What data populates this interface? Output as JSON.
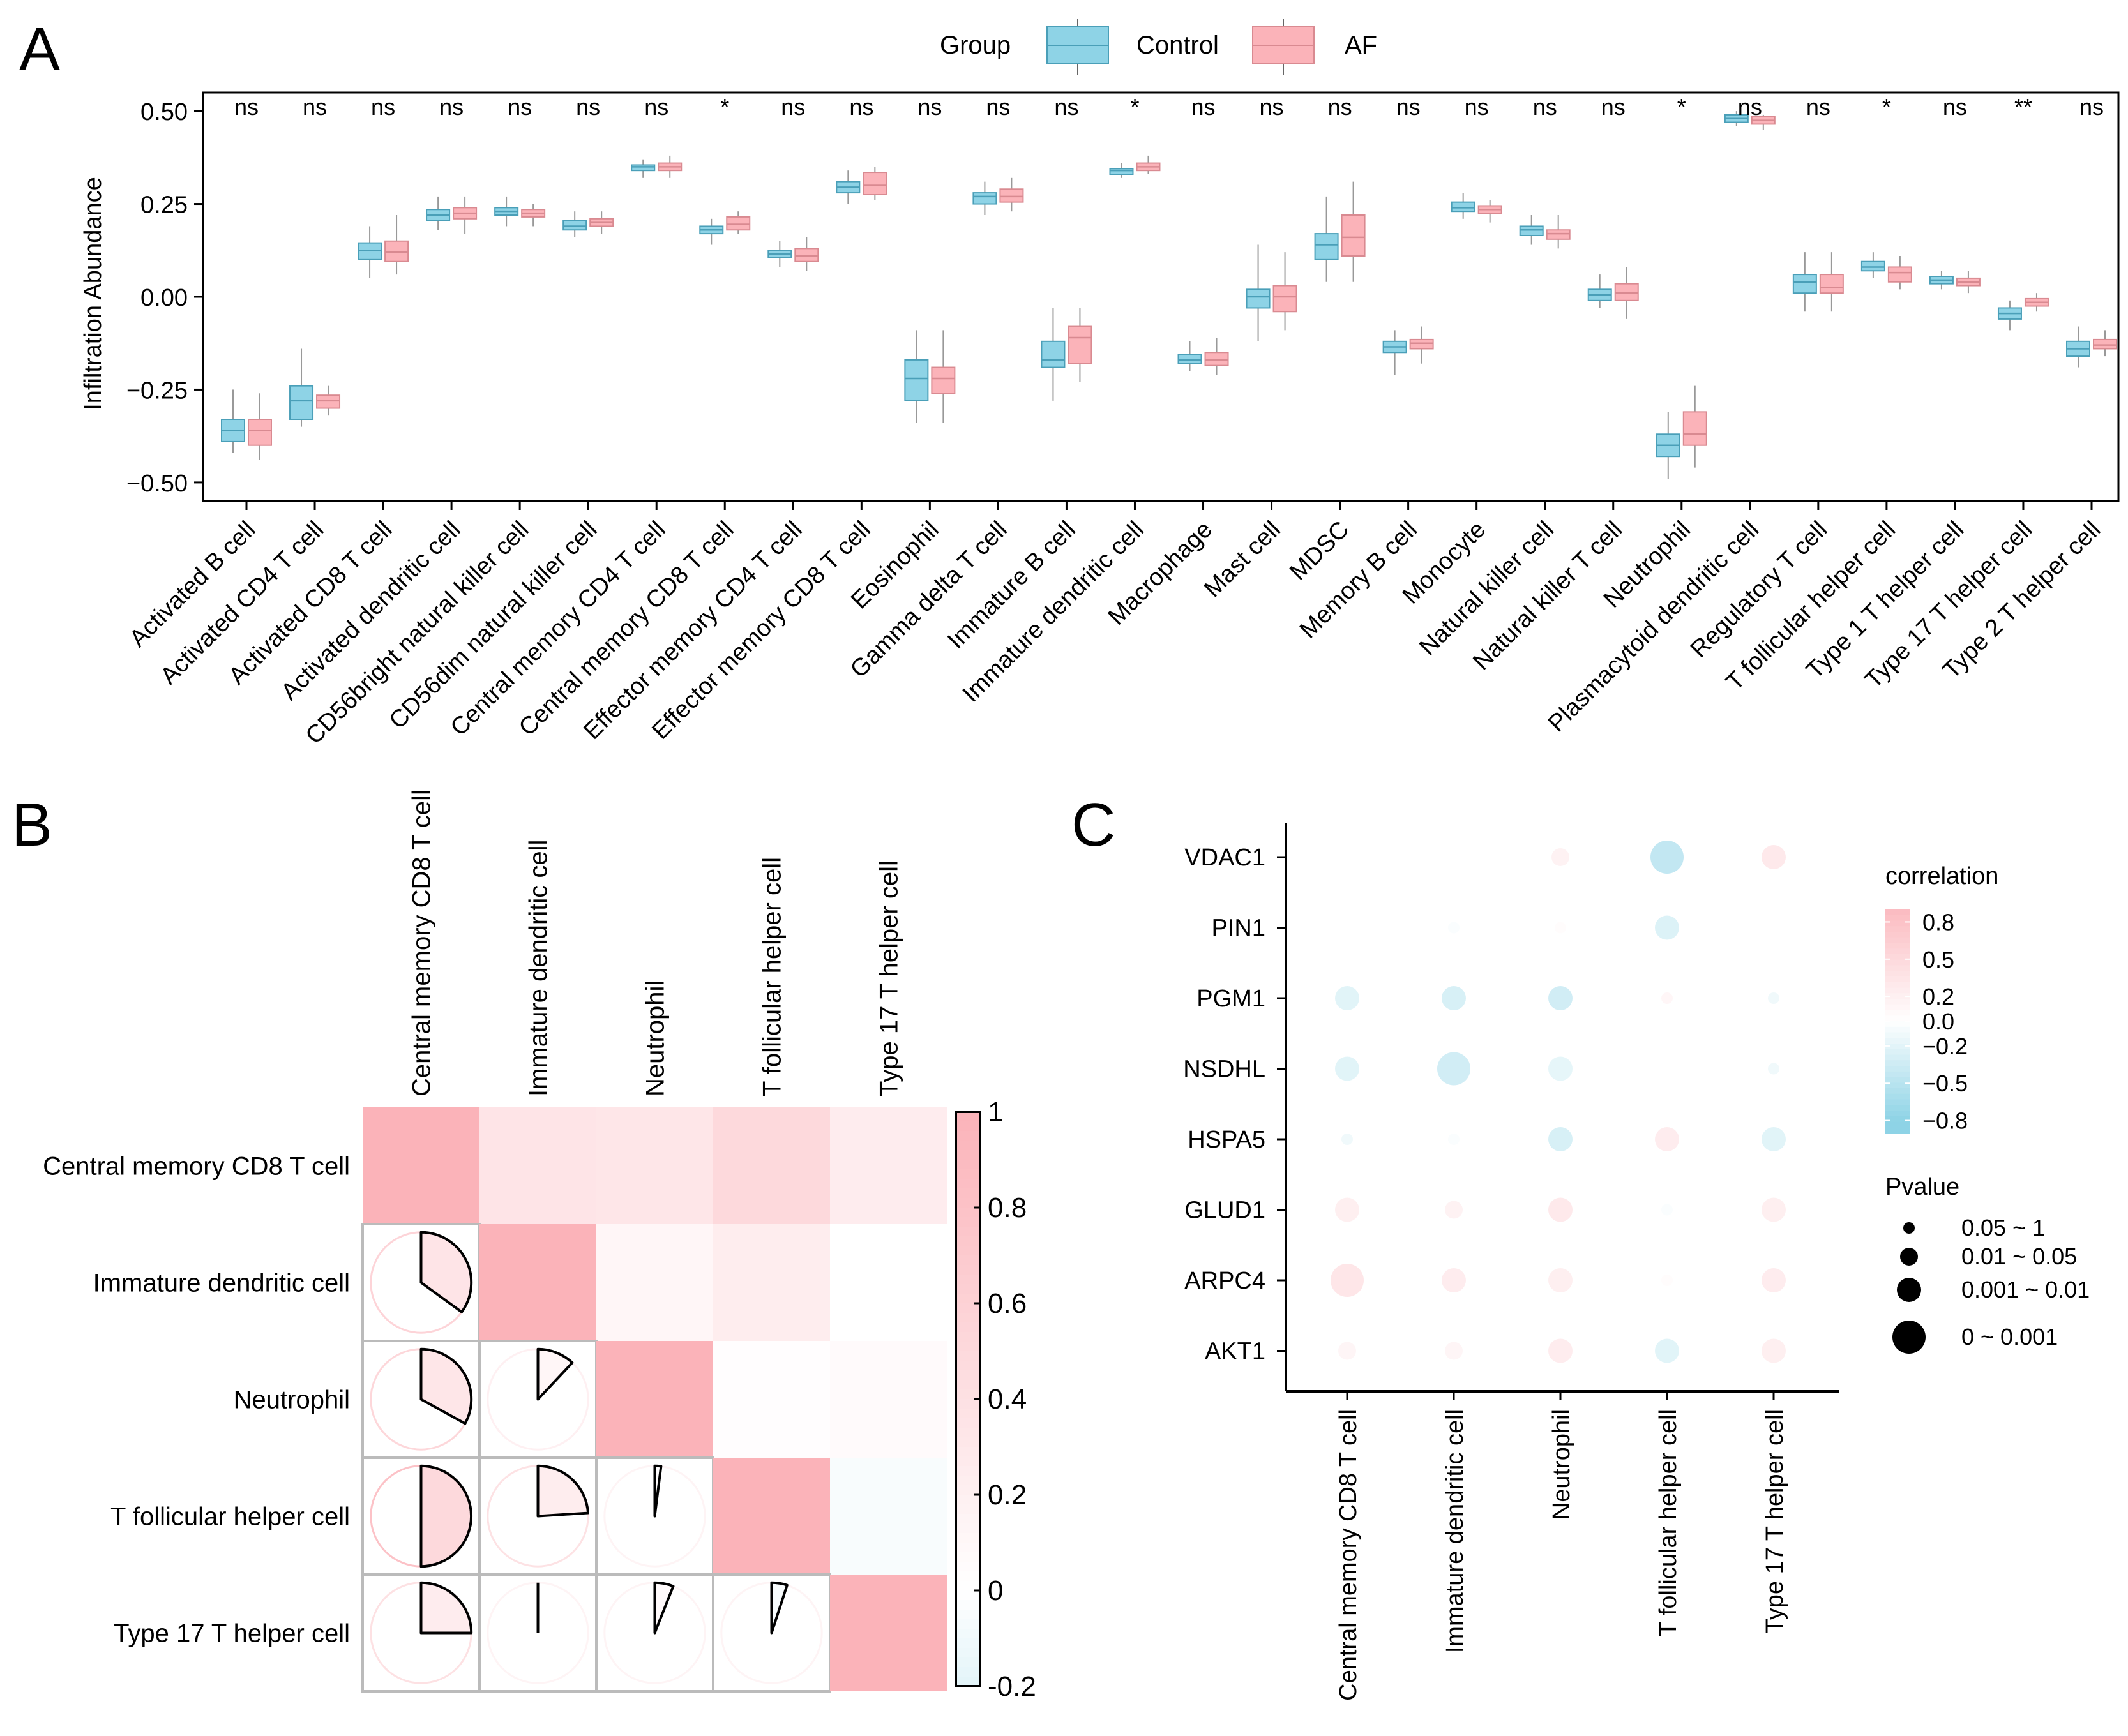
{
  "panel_labels": [
    "A",
    "B",
    "C"
  ],
  "colors": {
    "control": "#8ED3E6",
    "af": "#FBB3B9",
    "control_dark": "#4A9FB8",
    "af_dark": "#D98A91",
    "neg": "#8ED3E6",
    "pos": "#FBB3B9"
  },
  "chart_data": [
    {
      "id": "A",
      "type": "box",
      "legend": {
        "title": "Group",
        "items": [
          "Control",
          "AF"
        ]
      },
      "ylabel": "Infiltration Abundance",
      "ylim": [
        -0.55,
        0.55
      ],
      "yticks": [
        0.5,
        0.25,
        0.0,
        -0.25,
        -0.5
      ],
      "ytick_labels": [
        "0.50",
        "0.25",
        "0.00",
        "−0.25",
        "−0.50"
      ],
      "categories": [
        "Activated B cell",
        "Activated CD4 T cell",
        "Activated CD8 T cell",
        "Activated dendritic cell",
        "CD56bright natural killer cell",
        "CD56dim natural killer cell",
        "Central memory CD4 T cell",
        "Central memory CD8 T cell",
        "Effector memory CD4 T cell",
        "Effector memory CD8 T cell",
        "Eosinophil",
        "Gamma delta T cell",
        "Immature  B cell",
        "Immature dendritic cell",
        "Macrophage",
        "Mast cell",
        "MDSC",
        "Memory B cell",
        "Monocyte",
        "Natural killer cell",
        "Natural killer T cell",
        "Neutrophil",
        "Plasmacytoid dendritic cell",
        "Regulatory T cell",
        "T follicular helper cell",
        "Type 1 T helper cell",
        "Type 17 T helper cell",
        "Type 2 T helper cell"
      ],
      "significance": [
        "ns",
        "ns",
        "ns",
        "ns",
        "ns",
        "ns",
        "ns",
        "*",
        "ns",
        "ns",
        "ns",
        "ns",
        "ns",
        "*",
        "ns",
        "ns",
        "ns",
        "ns",
        "ns",
        "ns",
        "ns",
        "*",
        "ns",
        "ns",
        "*",
        "ns",
        "**",
        "ns"
      ],
      "series": [
        {
          "name": "Control",
          "boxes": [
            [
              -0.42,
              -0.39,
              -0.36,
              -0.33,
              -0.25
            ],
            [
              -0.35,
              -0.33,
              -0.28,
              -0.24,
              -0.14
            ],
            [
              0.05,
              0.1,
              0.125,
              0.145,
              0.19
            ],
            [
              0.18,
              0.205,
              0.22,
              0.235,
              0.27
            ],
            [
              0.19,
              0.22,
              0.23,
              0.24,
              0.27
            ],
            [
              0.16,
              0.18,
              0.19,
              0.205,
              0.23
            ],
            [
              0.32,
              0.34,
              0.35,
              0.355,
              0.37
            ],
            [
              0.14,
              0.17,
              0.18,
              0.19,
              0.21
            ],
            [
              0.08,
              0.105,
              0.115,
              0.125,
              0.15
            ],
            [
              0.25,
              0.28,
              0.295,
              0.31,
              0.34
            ],
            [
              -0.34,
              -0.28,
              -0.22,
              -0.17,
              -0.09
            ],
            [
              0.22,
              0.25,
              0.27,
              0.28,
              0.31
            ],
            [
              -0.28,
              -0.19,
              -0.17,
              -0.12,
              -0.03
            ],
            [
              0.32,
              0.33,
              0.34,
              0.345,
              0.36
            ],
            [
              -0.2,
              -0.18,
              -0.17,
              -0.155,
              -0.12
            ],
            [
              -0.12,
              -0.03,
              0.0,
              0.02,
              0.14
            ],
            [
              0.04,
              0.1,
              0.14,
              0.17,
              0.27
            ],
            [
              -0.21,
              -0.15,
              -0.135,
              -0.12,
              -0.09
            ],
            [
              0.21,
              0.23,
              0.24,
              0.255,
              0.28
            ],
            [
              0.14,
              0.165,
              0.18,
              0.19,
              0.22
            ],
            [
              -0.03,
              -0.01,
              0.005,
              0.02,
              0.06
            ],
            [
              -0.49,
              -0.43,
              -0.4,
              -0.37,
              -0.31
            ],
            [
              0.46,
              0.47,
              0.48,
              0.49,
              0.5
            ],
            [
              -0.04,
              0.01,
              0.04,
              0.06,
              0.12
            ],
            [
              0.05,
              0.07,
              0.08,
              0.095,
              0.12
            ],
            [
              0.02,
              0.035,
              0.045,
              0.055,
              0.07
            ],
            [
              -0.09,
              -0.06,
              -0.045,
              -0.03,
              -0.01
            ],
            [
              -0.19,
              -0.16,
              -0.14,
              -0.12,
              -0.08
            ]
          ]
        },
        {
          "name": "AF",
          "boxes": [
            [
              -0.44,
              -0.4,
              -0.36,
              -0.33,
              -0.26
            ],
            [
              -0.32,
              -0.3,
              -0.28,
              -0.265,
              -0.24
            ],
            [
              0.06,
              0.095,
              0.12,
              0.15,
              0.22
            ],
            [
              0.17,
              0.21,
              0.225,
              0.24,
              0.27
            ],
            [
              0.19,
              0.215,
              0.225,
              0.235,
              0.25
            ],
            [
              0.17,
              0.19,
              0.2,
              0.21,
              0.23
            ],
            [
              0.32,
              0.34,
              0.35,
              0.36,
              0.38
            ],
            [
              0.17,
              0.18,
              0.195,
              0.215,
              0.23
            ],
            [
              0.07,
              0.095,
              0.11,
              0.13,
              0.16
            ],
            [
              0.26,
              0.275,
              0.3,
              0.335,
              0.35
            ],
            [
              -0.34,
              -0.26,
              -0.22,
              -0.19,
              -0.09
            ],
            [
              0.23,
              0.255,
              0.27,
              0.29,
              0.32
            ],
            [
              -0.23,
              -0.18,
              -0.11,
              -0.08,
              -0.03
            ],
            [
              0.33,
              0.34,
              0.35,
              0.36,
              0.38
            ],
            [
              -0.21,
              -0.185,
              -0.17,
              -0.15,
              -0.11
            ],
            [
              -0.09,
              -0.04,
              0.0,
              0.03,
              0.12
            ],
            [
              0.04,
              0.11,
              0.16,
              0.22,
              0.31
            ],
            [
              -0.18,
              -0.14,
              -0.125,
              -0.115,
              -0.08
            ],
            [
              0.2,
              0.225,
              0.235,
              0.245,
              0.26
            ],
            [
              0.13,
              0.155,
              0.17,
              0.18,
              0.22
            ],
            [
              -0.06,
              -0.01,
              0.01,
              0.035,
              0.08
            ],
            [
              -0.46,
              -0.4,
              -0.37,
              -0.31,
              -0.24
            ],
            [
              0.45,
              0.465,
              0.475,
              0.485,
              0.49
            ],
            [
              -0.04,
              0.01,
              0.025,
              0.06,
              0.12
            ],
            [
              0.02,
              0.04,
              0.065,
              0.08,
              0.11
            ],
            [
              0.01,
              0.03,
              0.04,
              0.05,
              0.07
            ],
            [
              -0.04,
              -0.025,
              -0.015,
              -0.005,
              0.01
            ],
            [
              -0.16,
              -0.14,
              -0.13,
              -0.115,
              -0.09
            ]
          ]
        }
      ]
    },
    {
      "id": "B",
      "type": "heatmap",
      "labels": [
        "Central memory CD8 T cell",
        "Immature dendritic cell",
        "Neutrophil",
        "T follicular helper cell",
        "Type 17 T helper cell"
      ],
      "matrix": [
        [
          1.0,
          0.35,
          0.33,
          0.5,
          0.25
        ],
        [
          0.35,
          1.0,
          0.12,
          0.24,
          0.0
        ],
        [
          0.33,
          0.12,
          1.0,
          0.02,
          0.06
        ],
        [
          0.5,
          0.24,
          0.02,
          1.0,
          -0.05
        ],
        [
          0.25,
          0.0,
          0.06,
          -0.05,
          1.0
        ]
      ],
      "colorbar": {
        "ticks": [
          1,
          0.8,
          0.6,
          0.4,
          0.2,
          0,
          -0.2
        ],
        "labels": [
          "1",
          "0.8",
          "0.6",
          "0.4",
          "0.2",
          "0",
          "-0.2"
        ],
        "range": [
          -0.2,
          1
        ]
      }
    },
    {
      "id": "C",
      "type": "scatter",
      "genes": [
        "VDAC1",
        "PIN1",
        "PGM1",
        "NSDHL",
        "HSPA5",
        "GLUD1",
        "ARPC4",
        "AKT1"
      ],
      "cells": [
        "Central memory CD8 T cell",
        "Immature dendritic cell",
        "Neutrophil",
        "T follicular helper cell",
        "Type 17 T helper cell"
      ],
      "points": [
        {
          "gene": "VDAC1",
          "cell": "Neutrophil",
          "r": 0.25,
          "p": 2
        },
        {
          "gene": "VDAC1",
          "cell": "T follicular helper cell",
          "r": -0.6,
          "p": 4
        },
        {
          "gene": "VDAC1",
          "cell": "Type 17 T helper cell",
          "r": 0.4,
          "p": 3
        },
        {
          "gene": "PIN1",
          "cell": "Immature dendritic cell",
          "r": -0.05,
          "p": 1
        },
        {
          "gene": "PIN1",
          "cell": "Neutrophil",
          "r": 0.05,
          "p": 1
        },
        {
          "gene": "PIN1",
          "cell": "T follicular helper cell",
          "r": -0.35,
          "p": 3
        },
        {
          "gene": "PGM1",
          "cell": "Central memory CD8 T cell",
          "r": -0.3,
          "p": 3
        },
        {
          "gene": "PGM1",
          "cell": "Immature dendritic cell",
          "r": -0.4,
          "p": 3
        },
        {
          "gene": "PGM1",
          "cell": "Neutrophil",
          "r": -0.45,
          "p": 3
        },
        {
          "gene": "PGM1",
          "cell": "T follicular helper cell",
          "r": 0.15,
          "p": 1
        },
        {
          "gene": "PGM1",
          "cell": "Type 17 T helper cell",
          "r": -0.15,
          "p": 1
        },
        {
          "gene": "NSDHL",
          "cell": "Central memory CD8 T cell",
          "r": -0.3,
          "p": 3
        },
        {
          "gene": "NSDHL",
          "cell": "Immature dendritic cell",
          "r": -0.45,
          "p": 4
        },
        {
          "gene": "NSDHL",
          "cell": "Neutrophil",
          "r": -0.25,
          "p": 3
        },
        {
          "gene": "NSDHL",
          "cell": "Type 17 T helper cell",
          "r": -0.15,
          "p": 1
        },
        {
          "gene": "HSPA5",
          "cell": "Central memory CD8 T cell",
          "r": -0.15,
          "p": 1
        },
        {
          "gene": "HSPA5",
          "cell": "Immature dendritic cell",
          "r": -0.05,
          "p": 1
        },
        {
          "gene": "HSPA5",
          "cell": "Neutrophil",
          "r": -0.4,
          "p": 3
        },
        {
          "gene": "HSPA5",
          "cell": "T follicular helper cell",
          "r": 0.35,
          "p": 3
        },
        {
          "gene": "HSPA5",
          "cell": "Type 17 T helper cell",
          "r": -0.3,
          "p": 3
        },
        {
          "gene": "GLUD1",
          "cell": "Central memory CD8 T cell",
          "r": 0.3,
          "p": 3
        },
        {
          "gene": "GLUD1",
          "cell": "Immature dendritic cell",
          "r": 0.25,
          "p": 2
        },
        {
          "gene": "GLUD1",
          "cell": "Neutrophil",
          "r": 0.4,
          "p": 3
        },
        {
          "gene": "GLUD1",
          "cell": "T follicular helper cell",
          "r": -0.05,
          "p": 1
        },
        {
          "gene": "GLUD1",
          "cell": "Type 17 T helper cell",
          "r": 0.3,
          "p": 3
        },
        {
          "gene": "ARPC4",
          "cell": "Central memory CD8 T cell",
          "r": 0.45,
          "p": 4
        },
        {
          "gene": "ARPC4",
          "cell": "Immature dendritic cell",
          "r": 0.35,
          "p": 3
        },
        {
          "gene": "ARPC4",
          "cell": "Neutrophil",
          "r": 0.3,
          "p": 3
        },
        {
          "gene": "ARPC4",
          "cell": "T follicular helper cell",
          "r": 0.05,
          "p": 1
        },
        {
          "gene": "ARPC4",
          "cell": "Type 17 T helper cell",
          "r": 0.35,
          "p": 3
        },
        {
          "gene": "AKT1",
          "cell": "Central memory CD8 T cell",
          "r": 0.2,
          "p": 2
        },
        {
          "gene": "AKT1",
          "cell": "Immature dendritic cell",
          "r": 0.2,
          "p": 2
        },
        {
          "gene": "AKT1",
          "cell": "Neutrophil",
          "r": 0.35,
          "p": 3
        },
        {
          "gene": "AKT1",
          "cell": "T follicular helper cell",
          "r": -0.3,
          "p": 3
        },
        {
          "gene": "AKT1",
          "cell": "Type 17 T helper cell",
          "r": 0.3,
          "p": 3
        }
      ],
      "color_legend": {
        "title": "correlation",
        "ticks": [
          0.8,
          0.5,
          0.2,
          0.0,
          -0.2,
          -0.5,
          -0.8
        ],
        "labels": [
          "0.8",
          "0.5",
          "0.2",
          "0.0",
          "−0.2",
          "−0.5",
          "−0.8"
        ]
      },
      "size_legend": {
        "title": "Pvalue",
        "labels": [
          "0.05 ~ 1",
          "0.01 ~ 0.05",
          "0.001 ~ 0.01",
          "0 ~ 0.001"
        ]
      }
    }
  ]
}
